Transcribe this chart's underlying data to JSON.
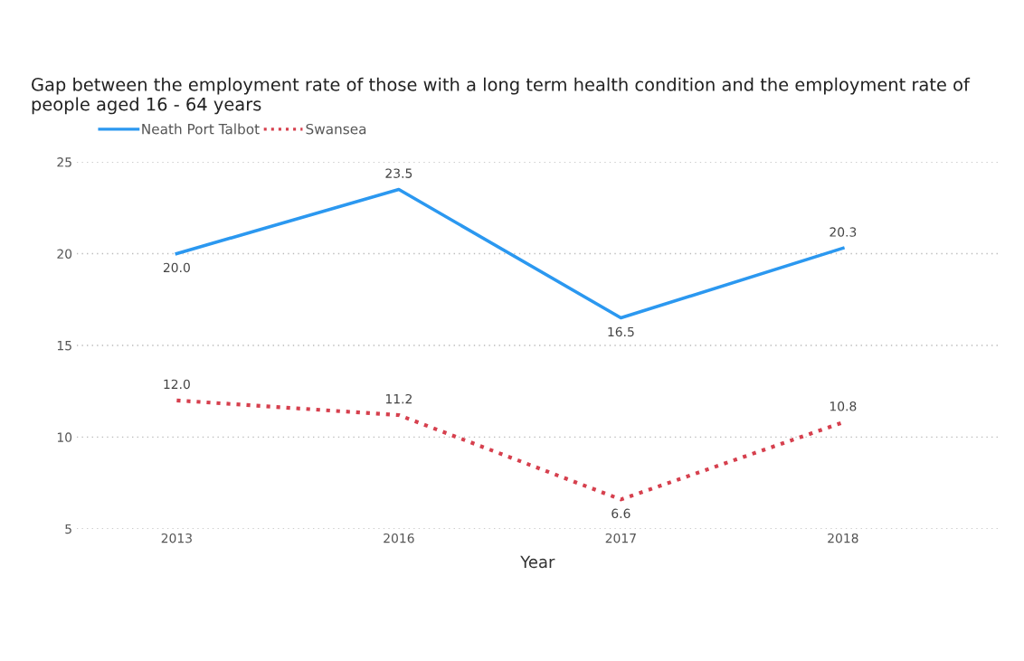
{
  "chart_data": {
    "type": "line",
    "title": "Gap between the employment rate of those with a long term health condition and the employment rate of people aged 16 - 64 years",
    "xlabel": "Year",
    "categories": [
      "2013",
      "2016",
      "2017",
      "2018"
    ],
    "series": [
      {
        "name": "Neath Port Talbot",
        "color": "#2b98f0",
        "values": [
          20.0,
          23.5,
          16.5,
          20.3
        ],
        "value_labels": [
          "20.0",
          "23.5",
          "16.5",
          "20.3"
        ],
        "line_style": "solid"
      },
      {
        "name": "Swansea",
        "color": "#d6404e",
        "values": [
          12.0,
          11.2,
          6.6,
          10.8
        ],
        "value_labels": [
          "12.0",
          "11.2",
          "6.6",
          "10.8"
        ],
        "line_style": "dotted"
      }
    ],
    "ylim": [
      5,
      25
    ],
    "yticks": [
      5,
      10,
      15,
      20,
      25
    ],
    "grid": "y",
    "legend": "top left",
    "marker": "none"
  }
}
